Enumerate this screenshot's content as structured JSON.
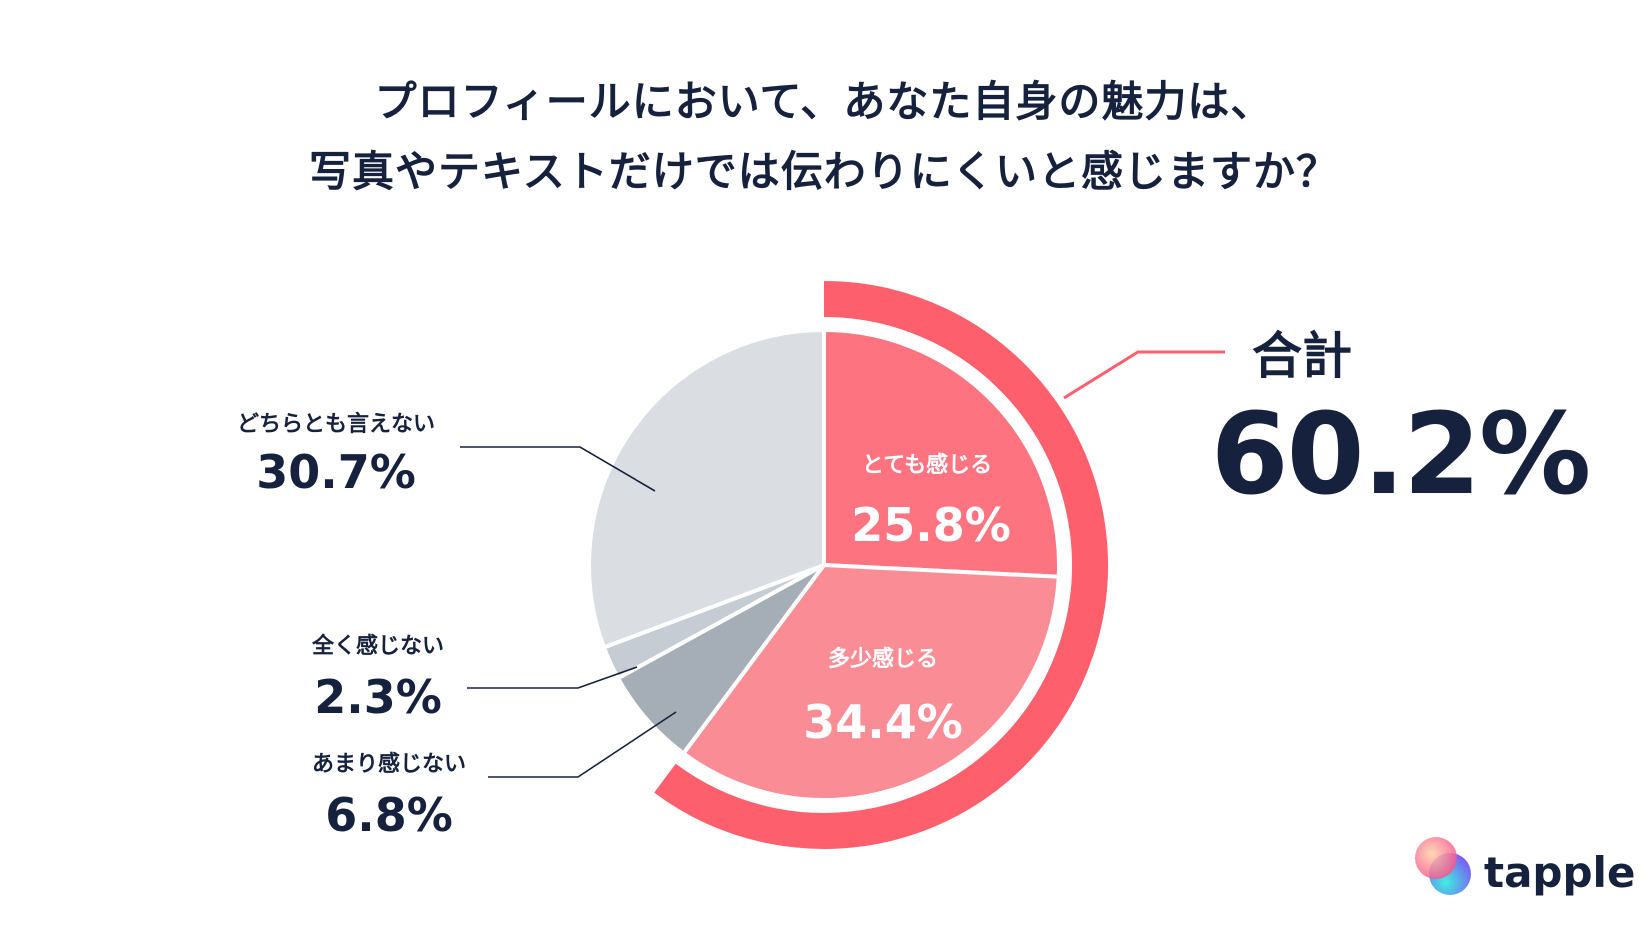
{
  "chart_data": {
    "type": "pie",
    "title": [
      "プロフィールにおいて、あなた自身の魅力は、",
      "写真やテキストだけでは伝わりにくいと感じますか？"
    ],
    "slices": [
      {
        "label": "とても感じる",
        "value": 25.8,
        "display": "25.8%",
        "color": "#fd7480"
      },
      {
        "label": "多少感じる",
        "value": 34.4,
        "display": "34.4%",
        "color": "#fa8c96"
      },
      {
        "label": "あまり感じない",
        "value": 6.8,
        "display": "6.8%",
        "color": "#a5adb6"
      },
      {
        "label": "全く感じない",
        "value": 2.3,
        "display": "2.3%",
        "color": "#c6ccd3"
      },
      {
        "label": "どちらとも言えない",
        "value": 30.7,
        "display": "30.7%",
        "color": "#dadee3"
      }
    ],
    "total": {
      "label": "合計",
      "value": 60.2,
      "display": "60.2%",
      "color": "#fd5f6d"
    }
  },
  "brand": {
    "name": "tapple"
  }
}
